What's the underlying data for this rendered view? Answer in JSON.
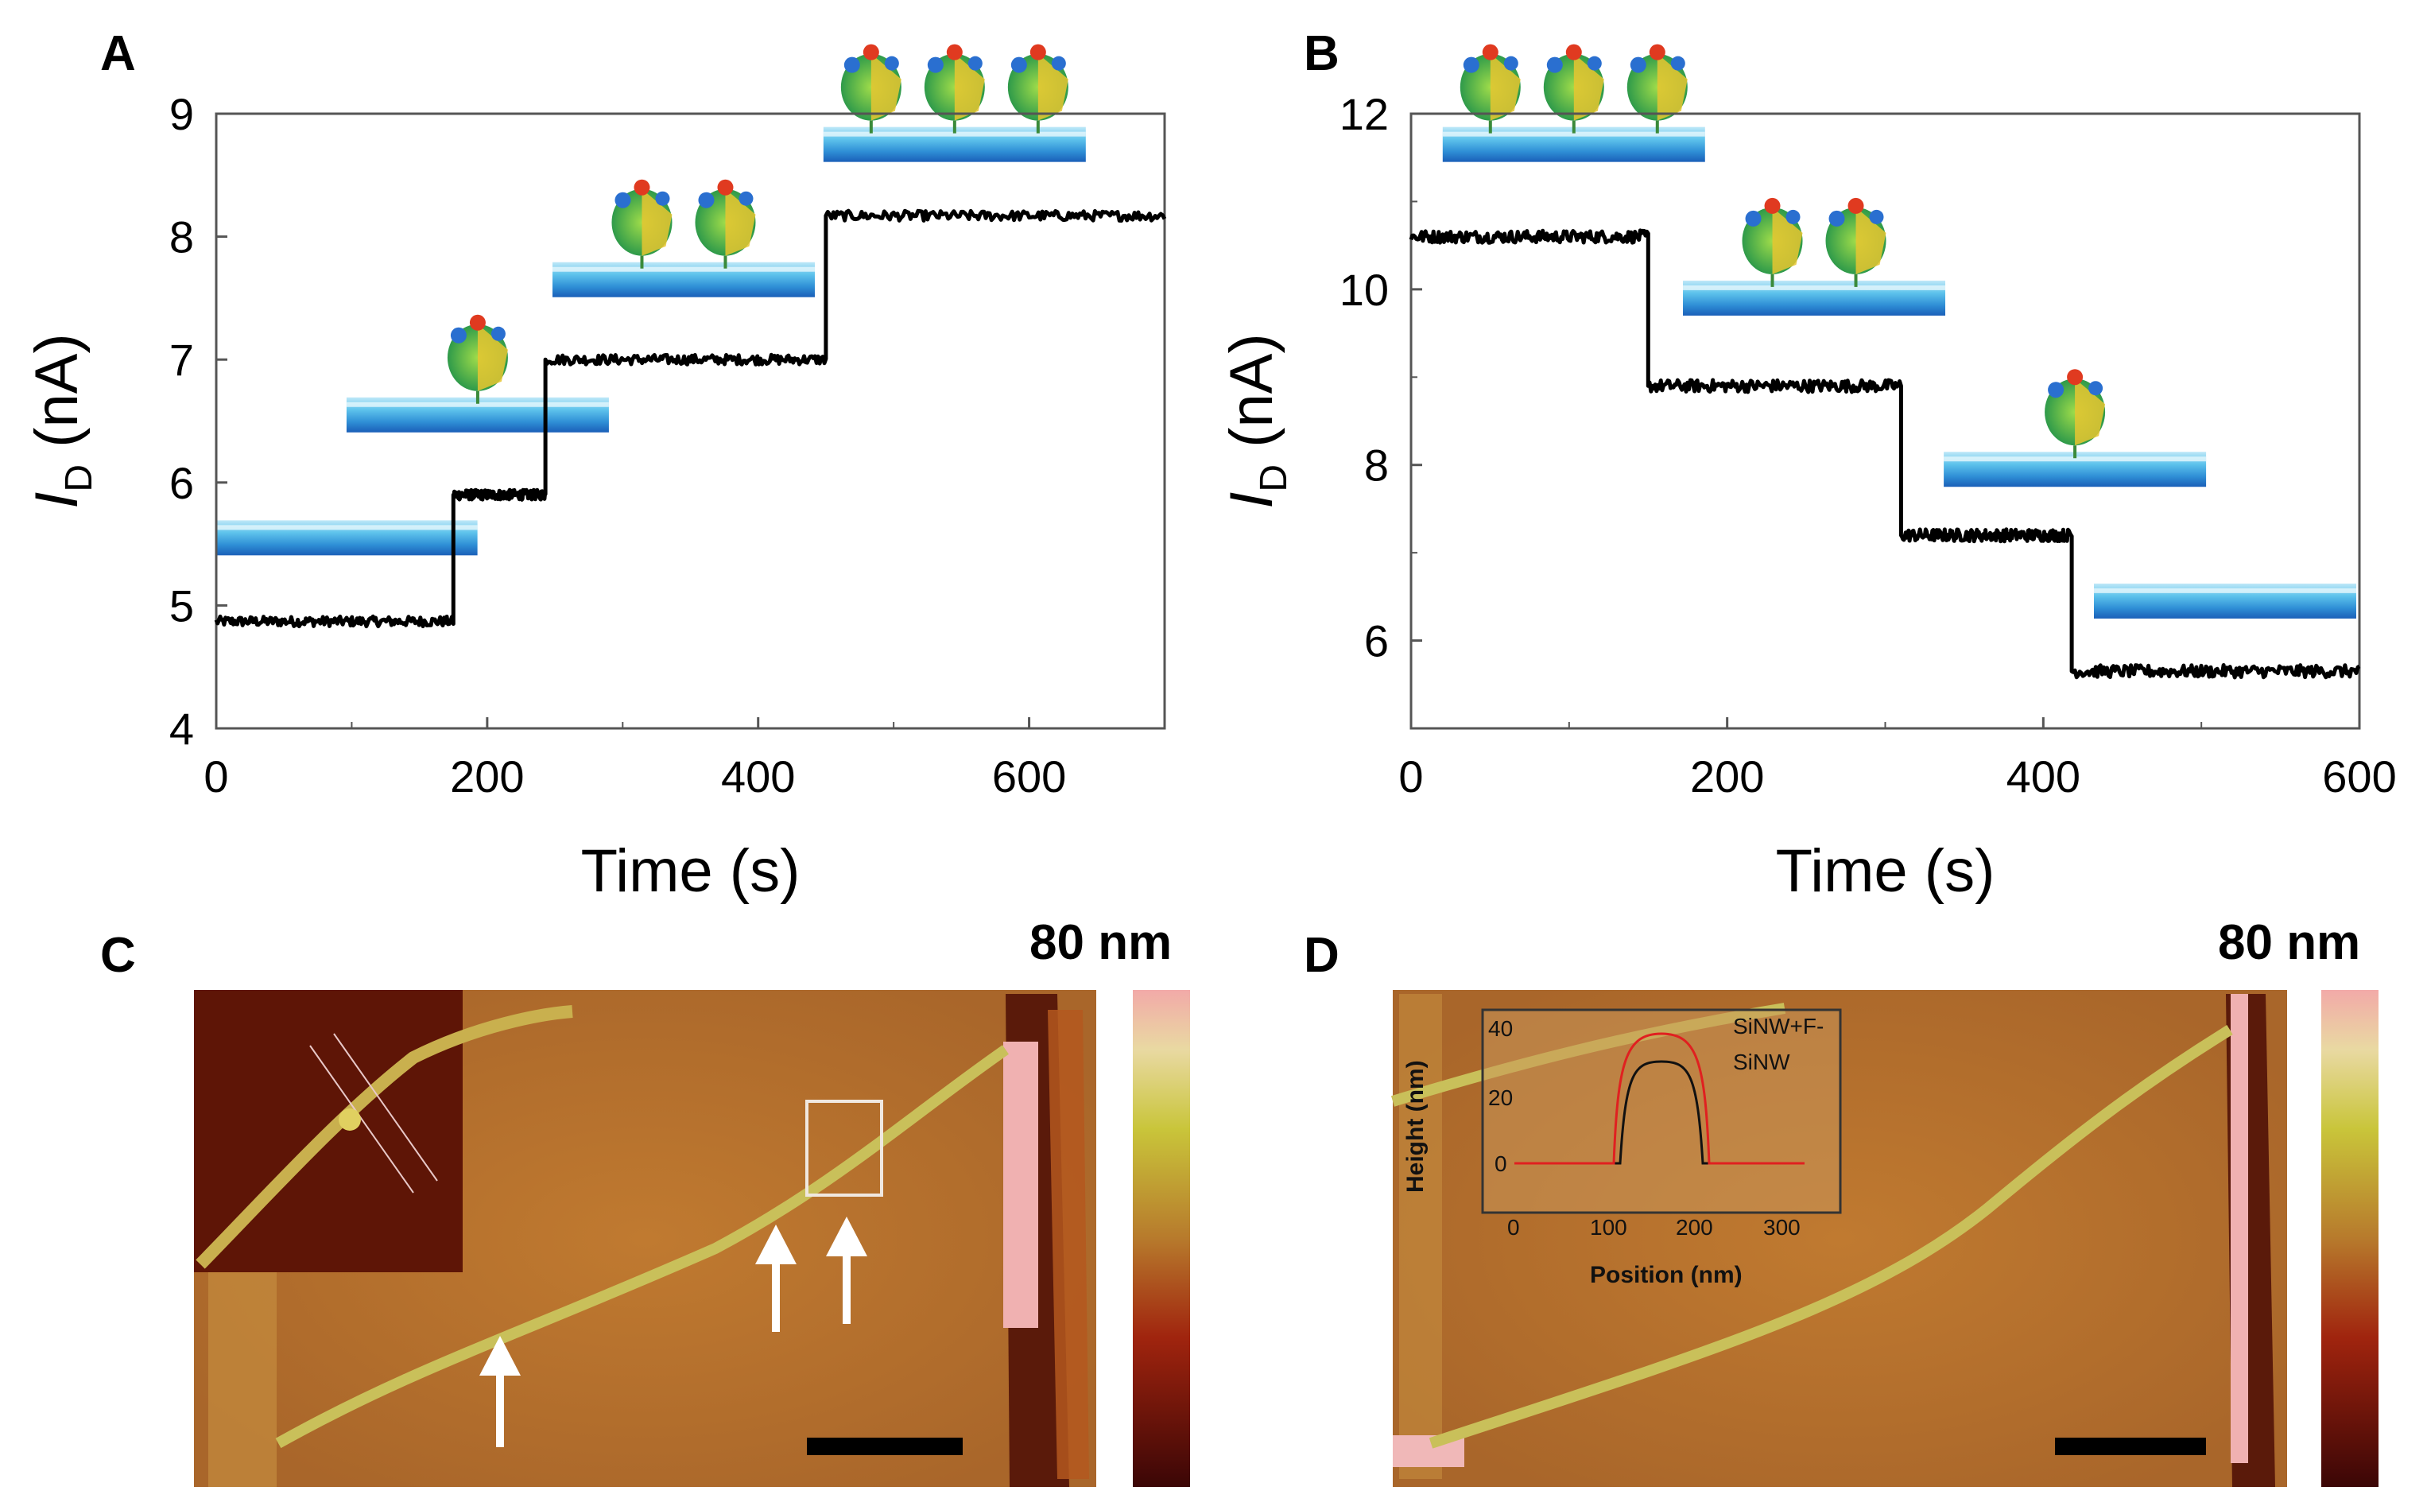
{
  "panels": {
    "A": {
      "letter": "A"
    },
    "B": {
      "letter": "B"
    },
    "C": {
      "letter": "C",
      "scale_label": "80 nm"
    },
    "D": {
      "letter": "D",
      "scale_label": "80 nm"
    }
  },
  "inset_D": {
    "ylabel": "Height (nm)",
    "xlabel": "Position (nm)",
    "xticks": [
      "0",
      "100",
      "200",
      "300"
    ],
    "yticks": [
      "0",
      "20",
      "40"
    ],
    "legend": [
      "SiNW+F-",
      "SiNW"
    ]
  },
  "colors": {
    "trace": "#000000",
    "nanowire": "#3aa8dc",
    "afm_bg": "#b5702a",
    "profile_red": "#e02020"
  },
  "chart_data": [
    {
      "id": "A",
      "type": "line",
      "title": "",
      "xlabel": "Time (s)",
      "ylabel_main": "I",
      "ylabel_sub": "D",
      "ylabel_rest": " (nA)",
      "xlim": [
        0,
        700
      ],
      "ylim": [
        4,
        9
      ],
      "xticks": [
        0,
        200,
        400,
        600
      ],
      "yticks": [
        4,
        5,
        6,
        7,
        8,
        9
      ],
      "xtick_labels": [
        "0",
        "200",
        "400",
        "600"
      ],
      "ytick_labels": [
        "4",
        "5",
        "6",
        "7",
        "8",
        "9"
      ],
      "steps": [
        {
          "t0": 0,
          "t1": 175,
          "value": 4.87
        },
        {
          "t0": 175,
          "t1": 243,
          "value": 5.9
        },
        {
          "t0": 243,
          "t1": 450,
          "value": 7.0
        },
        {
          "t0": 450,
          "t1": 700,
          "value": 8.17
        }
      ],
      "noise_nA": 0.04,
      "annotations": [
        {
          "label": "nanowire",
          "proteins": 0,
          "x_s": 96,
          "y_nA": 5.55
        },
        {
          "label": "nanowire",
          "proteins": 1,
          "x_s": 193,
          "y_nA": 6.55
        },
        {
          "label": "nanowire",
          "proteins": 2,
          "x_s": 345,
          "y_nA": 7.65
        },
        {
          "label": "nanowire",
          "proteins": 3,
          "x_s": 545,
          "y_nA": 8.75
        }
      ]
    },
    {
      "id": "B",
      "type": "line",
      "title": "",
      "xlabel": "Time (s)",
      "ylabel_main": "I",
      "ylabel_sub": "D",
      "ylabel_rest": " (nA)",
      "xlim": [
        0,
        600
      ],
      "ylim": [
        5,
        12
      ],
      "xticks": [
        0,
        200,
        400,
        600
      ],
      "yticks": [
        6,
        8,
        10,
        12
      ],
      "xtick_labels": [
        "0",
        "200",
        "400",
        "600"
      ],
      "ytick_labels": [
        "6",
        "8",
        "10",
        "12"
      ],
      "steps": [
        {
          "t0": 0,
          "t1": 150,
          "value": 10.6
        },
        {
          "t0": 150,
          "t1": 310,
          "value": 8.9
        },
        {
          "t0": 310,
          "t1": 418,
          "value": 7.2
        },
        {
          "t0": 418,
          "t1": 600,
          "value": 5.65
        }
      ],
      "noise_nA": 0.07,
      "annotations": [
        {
          "label": "nanowire",
          "proteins": 3,
          "x_s": 103,
          "y_nA": 11.65
        },
        {
          "label": "nanowire",
          "proteins": 2,
          "x_s": 255,
          "y_nA": 9.9
        },
        {
          "label": "nanowire",
          "proteins": 1,
          "x_s": 420,
          "y_nA": 7.95
        },
        {
          "label": "nanowire",
          "proteins": 0,
          "x_s": 515,
          "y_nA": 6.45
        }
      ]
    }
  ]
}
